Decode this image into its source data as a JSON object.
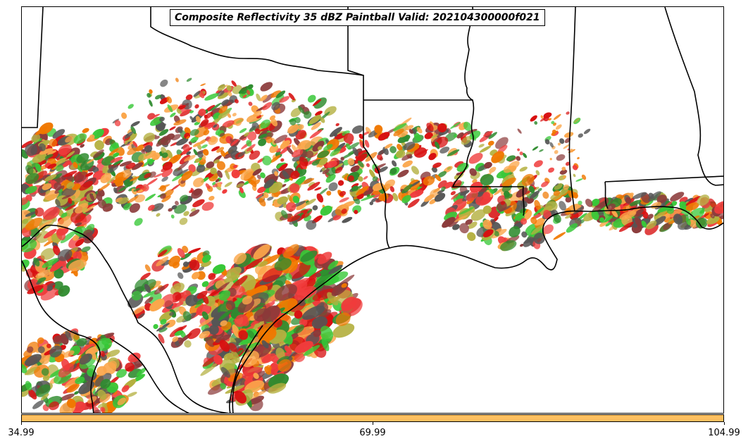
{
  "title": "Composite Reflectivity 35 dBZ Paintball Valid: 202104300000f021",
  "colorbar": {
    "color": "#fdbf5f",
    "ticks": [
      "34.99",
      "69.99",
      "104.99"
    ]
  },
  "palette": [
    "#f03c3c",
    "#d81010",
    "#f07800",
    "#fba64a",
    "#38c838",
    "#2e8b2e",
    "#b4b040",
    "#8b3a3a",
    "#555555",
    "#fdbf5f"
  ],
  "map": {
    "region": "US Gulf Coast",
    "boundary_color": "#000000"
  }
}
